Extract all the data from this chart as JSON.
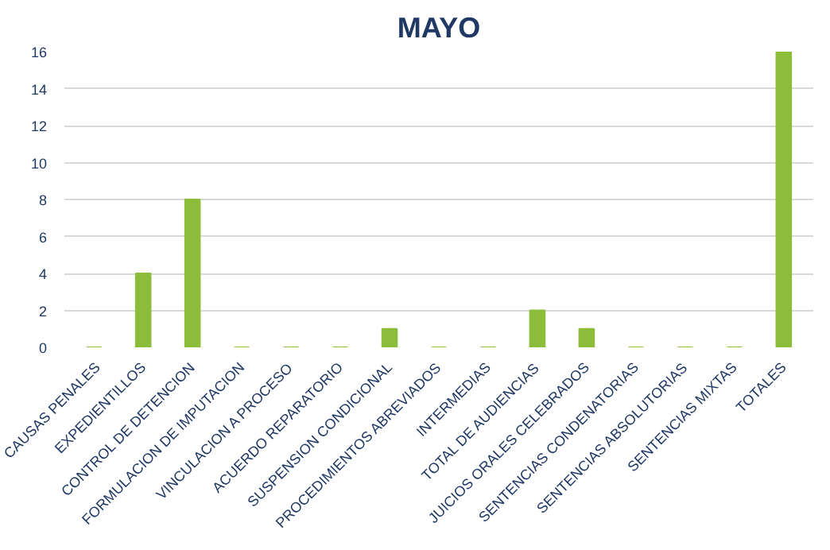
{
  "chart_data": {
    "type": "bar",
    "title": "MAYO",
    "categories": [
      "CAUSAS PENALES",
      "EXPEDIENTILLOS",
      "CONTROL DE DETENCION",
      "FORMULACION DE IMPUTACION",
      "VINCULACION A PROCESO",
      "ACUERDO REPARATORIO",
      "SUSPENSION CONDICIONAL",
      "PROCEDIMIENTOS ABREVIADOS",
      "INTERMEDIAS",
      "TOTAL DE AUDIENCIAS",
      "JUICIOS ORALES CELEBRADOS",
      "SENTENCIAS CONDENATORIAS",
      "SENTENCIAS ABSOLUTORIAS",
      "SENTENCIAS MIXTAS",
      "TOTALES"
    ],
    "values": [
      0,
      4,
      8,
      0,
      0,
      0,
      1,
      0,
      0,
      2,
      1,
      0,
      0,
      0,
      16
    ],
    "color": "#8cbd3a",
    "ylim": [
      0,
      16
    ],
    "yticks": [
      0,
      2,
      4,
      6,
      8,
      10,
      12,
      14,
      16
    ],
    "grid": "y"
  }
}
